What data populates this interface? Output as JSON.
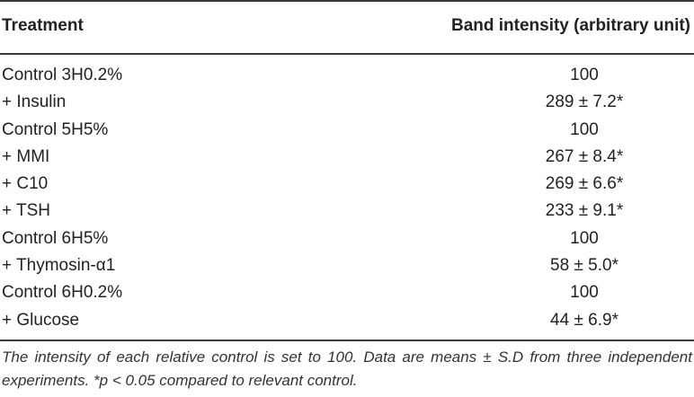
{
  "table": {
    "headers": {
      "treatment": "Treatment",
      "band_intensity": "Band intensity (arbitrary unit)"
    },
    "rows": [
      {
        "treatment": "Control 3H0.2%",
        "value": "100"
      },
      {
        "treatment": "+ Insulin",
        "value": "289 ± 7.2*"
      },
      {
        "treatment": "Control 5H5%",
        "value": "100"
      },
      {
        "treatment": "+ MMI",
        "value": "267 ± 8.4*"
      },
      {
        "treatment": "+ C10",
        "value": "269 ± 6.6*"
      },
      {
        "treatment": "+ TSH",
        "value": "233 ± 9.1*"
      },
      {
        "treatment": "Control 6H5%",
        "value": "100"
      },
      {
        "treatment": "+ Thymosin-α1",
        "value": "58 ± 5.0*"
      },
      {
        "treatment": "Control 6H0.2%",
        "value": "100"
      },
      {
        "treatment": "+ Glucose",
        "value": "44 ± 6.9*"
      }
    ],
    "footnote": "The intensity of each relative control is set to 100. Data are means ± S.D from three independent experiments. *p < 0.05 compared to relevant control."
  }
}
